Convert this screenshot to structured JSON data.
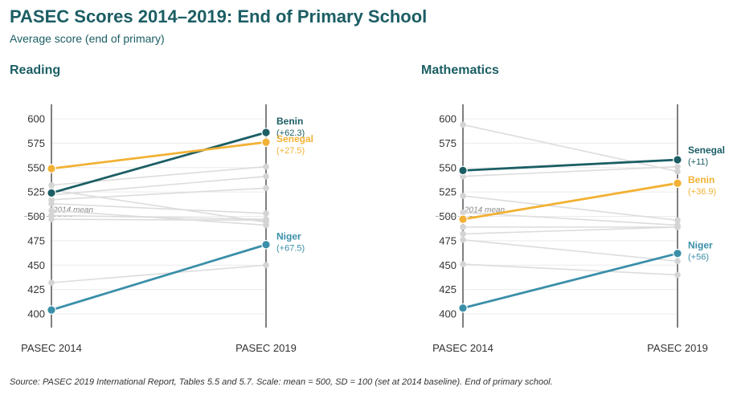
{
  "title": "PASEC Scores 2014–2019: End of Primary School",
  "subtitle": "Average score (end of primary)",
  "source": "Source: PASEC 2019 International Report, Tables 5.5 and 5.7. Scale: mean = 500, SD = 100 (set at 2014 baseline). End of primary school.",
  "colors": {
    "dark_teal": "#1b5e64",
    "gold": "#f2b134",
    "blue": "#3a8fa9",
    "grey_line": "#dcdcdc",
    "grey_dot": "#d4d4d4",
    "axis": "#555555",
    "grid": "#ececec",
    "tick_text": "#333333",
    "mean_line": "#b0b0b0"
  },
  "chart_data": [
    {
      "type": "slope",
      "title": "Reading",
      "categories": [
        "PASEC 2014",
        "PASEC 2019"
      ],
      "ylim": [
        390,
        610
      ],
      "yticks": [
        400,
        425,
        450,
        475,
        500,
        525,
        550,
        575,
        600
      ],
      "mean_label": "2014 mean",
      "mean_value": 500,
      "background_series": [
        {
          "values": [
            532,
            551
          ]
        },
        {
          "values": [
            527,
            494
          ]
        },
        {
          "values": [
            522,
            541
          ]
        },
        {
          "values": [
            517,
            529
          ]
        },
        {
          "values": [
            513,
            503
          ]
        },
        {
          "values": [
            506,
            491
          ]
        },
        {
          "values": [
            501,
            497
          ]
        },
        {
          "values": [
            497,
            496
          ]
        },
        {
          "values": [
            432,
            450
          ]
        }
      ],
      "highlighted_series": [
        {
          "name": "Benin",
          "change": "(+62.3)",
          "values": [
            524,
            586
          ],
          "color": "#1b5e64"
        },
        {
          "name": "Senegal",
          "change": "(+27.5)",
          "values": [
            549,
            576
          ],
          "color": "#f2b134"
        },
        {
          "name": "Niger",
          "change": "(+67.5)",
          "values": [
            404,
            471
          ],
          "color": "#3a8fa9"
        }
      ]
    },
    {
      "type": "slope",
      "title": "Mathematics",
      "categories": [
        "PASEC 2014",
        "PASEC 2019"
      ],
      "ylim": [
        390,
        610
      ],
      "yticks": [
        400,
        425,
        450,
        475,
        500,
        525,
        550,
        575,
        600
      ],
      "mean_label": "2014 mean",
      "mean_value": 500,
      "background_series": [
        {
          "values": [
            594,
            546
          ]
        },
        {
          "values": [
            541,
            551
          ]
        },
        {
          "values": [
            521,
            496
          ]
        },
        {
          "values": [
            504,
            491
          ]
        },
        {
          "values": [
            489,
            489
          ]
        },
        {
          "values": [
            482,
            489
          ]
        },
        {
          "values": [
            476,
            454
          ]
        },
        {
          "values": [
            451,
            440
          ]
        }
      ],
      "highlighted_series": [
        {
          "name": "Senegal",
          "change": "(+11)",
          "values": [
            547,
            558
          ],
          "color": "#1b5e64"
        },
        {
          "name": "Benin",
          "change": "(+36.9)",
          "values": [
            497,
            534
          ],
          "color": "#f2b134"
        },
        {
          "name": "Niger",
          "change": "(+56)",
          "values": [
            406,
            462
          ],
          "color": "#3a8fa9"
        }
      ]
    }
  ]
}
